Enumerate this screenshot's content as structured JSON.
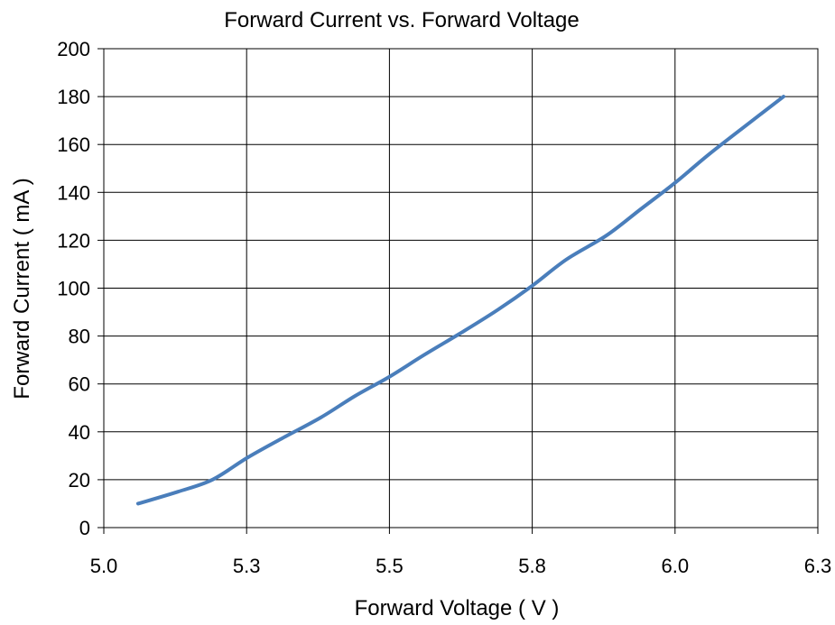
{
  "chart_data": {
    "type": "line",
    "title": "Forward Current vs. Forward Voltage",
    "xlabel": "Forward Voltage ( V )",
    "ylabel": "Forward Current ( mA )",
    "xlim": [
      5.0,
      6.25
    ],
    "ylim": [
      0,
      200
    ],
    "x_ticks": [
      {
        "value": 5.0,
        "label": "5.0"
      },
      {
        "value": 5.25,
        "label": "5.3"
      },
      {
        "value": 5.5,
        "label": "5.5"
      },
      {
        "value": 5.75,
        "label": "5.8"
      },
      {
        "value": 6.0,
        "label": "6.0"
      },
      {
        "value": 6.25,
        "label": "6.3"
      }
    ],
    "y_ticks": [
      {
        "value": 0,
        "label": "0"
      },
      {
        "value": 20,
        "label": "20"
      },
      {
        "value": 40,
        "label": "40"
      },
      {
        "value": 60,
        "label": "60"
      },
      {
        "value": 80,
        "label": "80"
      },
      {
        "value": 100,
        "label": "100"
      },
      {
        "value": 120,
        "label": "120"
      },
      {
        "value": 140,
        "label": "140"
      },
      {
        "value": 160,
        "label": "160"
      },
      {
        "value": 180,
        "label": "180"
      },
      {
        "value": 200,
        "label": "200"
      }
    ],
    "grid": {
      "x": true,
      "y": true
    },
    "legend": "none",
    "series": [
      {
        "color": "#4a7ebb",
        "x": [
          5.06,
          5.13,
          5.19,
          5.25,
          5.31,
          5.38,
          5.44,
          5.5,
          5.56,
          5.63,
          5.69,
          5.75,
          5.81,
          5.88,
          5.94,
          6.0,
          6.06,
          6.13,
          6.19
        ],
        "y": [
          10,
          15,
          20,
          29,
          37,
          46,
          55,
          63,
          72,
          82,
          91,
          101,
          112,
          122,
          133,
          144,
          156,
          169,
          180
        ]
      }
    ]
  }
}
